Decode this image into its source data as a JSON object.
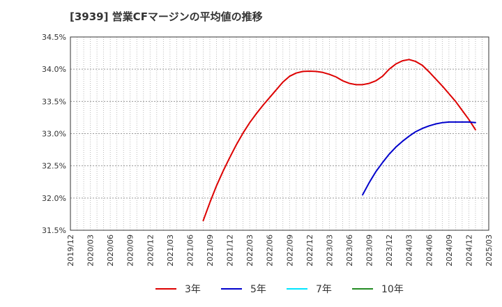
{
  "chart_data": {
    "type": "line",
    "title": "[3939]  営業CFマージンの平均値の推移",
    "xlabel": "",
    "ylabel": "",
    "ylim": [
      31.5,
      34.5
    ],
    "yticks": [
      31.5,
      32.0,
      32.5,
      33.0,
      33.5,
      34.0,
      34.5
    ],
    "ytick_labels": [
      "31.5%",
      "32.0%",
      "32.5%",
      "33.0%",
      "33.5%",
      "34.0%",
      "34.5%"
    ],
    "xtick_labels": [
      "2019/12",
      "2020/03",
      "2020/06",
      "2020/09",
      "2020/12",
      "2021/03",
      "2021/06",
      "2021/09",
      "2021/12",
      "2022/03",
      "2022/06",
      "2022/09",
      "2022/12",
      "2023/03",
      "2023/06",
      "2023/09",
      "2023/12",
      "2024/03",
      "2024/06",
      "2024/09",
      "2024/12",
      "2025/03"
    ],
    "grid": true,
    "legend_position": "bottom",
    "series": [
      {
        "name": "3年",
        "color": "#dd0000",
        "points": [
          [
            "2021/08",
            31.65
          ],
          [
            "2021/09",
            31.93
          ],
          [
            "2021/10",
            32.19
          ],
          [
            "2021/11",
            32.42
          ],
          [
            "2021/12",
            32.63
          ],
          [
            "2022/01",
            32.83
          ],
          [
            "2022/02",
            33.01
          ],
          [
            "2022/03",
            33.17
          ],
          [
            "2022/04",
            33.31
          ],
          [
            "2022/05",
            33.44
          ],
          [
            "2022/06",
            33.56
          ],
          [
            "2022/07",
            33.68
          ],
          [
            "2022/08",
            33.8
          ],
          [
            "2022/09",
            33.89
          ],
          [
            "2022/10",
            33.94
          ],
          [
            "2022/11",
            33.965
          ],
          [
            "2022/12",
            33.97
          ],
          [
            "2023/01",
            33.965
          ],
          [
            "2023/02",
            33.95
          ],
          [
            "2023/03",
            33.92
          ],
          [
            "2023/04",
            33.88
          ],
          [
            "2023/05",
            33.82
          ],
          [
            "2023/06",
            33.78
          ],
          [
            "2023/07",
            33.76
          ],
          [
            "2023/08",
            33.76
          ],
          [
            "2023/09",
            33.78
          ],
          [
            "2023/10",
            33.82
          ],
          [
            "2023/11",
            33.89
          ],
          [
            "2023/12",
            34.0
          ],
          [
            "2024/01",
            34.08
          ],
          [
            "2024/02",
            34.13
          ],
          [
            "2024/03",
            34.15
          ],
          [
            "2024/04",
            34.12
          ],
          [
            "2024/05",
            34.06
          ],
          [
            "2024/06",
            33.96
          ],
          [
            "2024/07",
            33.85
          ],
          [
            "2024/08",
            33.74
          ],
          [
            "2024/09",
            33.62
          ],
          [
            "2024/10",
            33.5
          ],
          [
            "2024/11",
            33.36
          ],
          [
            "2024/12",
            33.22
          ],
          [
            "2025/01",
            33.06
          ]
        ]
      },
      {
        "name": "5年",
        "color": "#0000cc",
        "points": [
          [
            "2023/08",
            32.05
          ],
          [
            "2023/09",
            32.24
          ],
          [
            "2023/10",
            32.41
          ],
          [
            "2023/11",
            32.55
          ],
          [
            "2023/12",
            32.68
          ],
          [
            "2024/01",
            32.79
          ],
          [
            "2024/02",
            32.88
          ],
          [
            "2024/03",
            32.96
          ],
          [
            "2024/04",
            33.03
          ],
          [
            "2024/05",
            33.08
          ],
          [
            "2024/06",
            33.12
          ],
          [
            "2024/07",
            33.15
          ],
          [
            "2024/08",
            33.17
          ],
          [
            "2024/09",
            33.18
          ],
          [
            "2024/10",
            33.18
          ],
          [
            "2024/11",
            33.18
          ],
          [
            "2024/12",
            33.18
          ],
          [
            "2025/01",
            33.17
          ]
        ]
      },
      {
        "name": "7年",
        "color": "#00e5ff",
        "points": []
      },
      {
        "name": "10年",
        "color": "#228b22",
        "points": []
      }
    ]
  }
}
